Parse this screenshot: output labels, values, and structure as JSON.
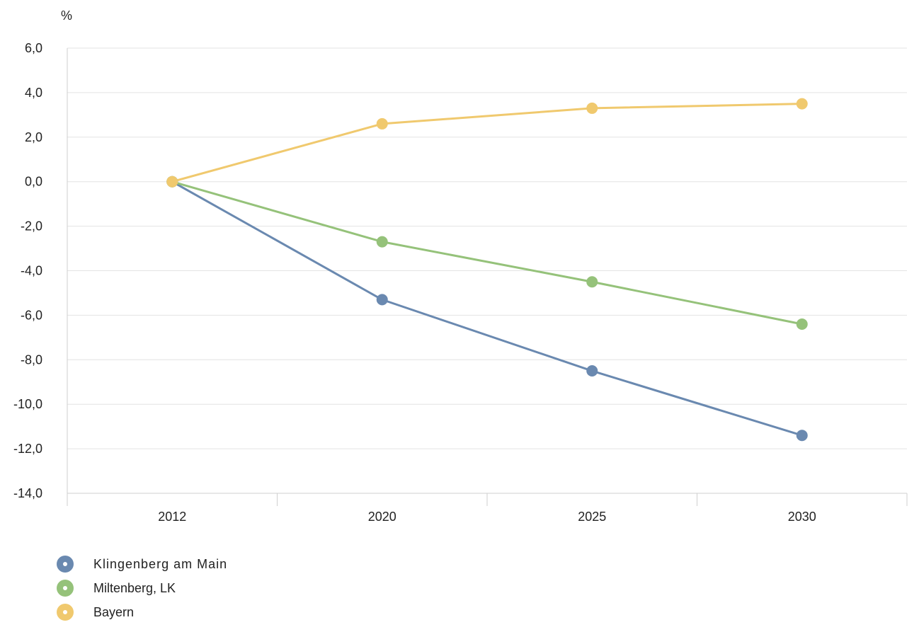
{
  "chart_data": {
    "type": "line",
    "ylabel": "%",
    "categories": [
      "2012",
      "2020",
      "2025",
      "2030"
    ],
    "ylim": [
      -14,
      6
    ],
    "yticks": [
      6,
      4,
      2,
      0,
      -2,
      -4,
      -6,
      -8,
      -10,
      -12,
      -14
    ],
    "ytick_labels": [
      "6,0",
      "4,0",
      "2,0",
      "0,0",
      "-2,0",
      "-4,0",
      "-6,0",
      "-8,0",
      "-10,0",
      "-12,0",
      "-14,0"
    ],
    "grid": true,
    "legend_position": "bottom-left",
    "series": [
      {
        "name": "Klingenberg am Main",
        "color": "#6a89b0",
        "values": [
          0.0,
          -5.3,
          -8.5,
          -11.4
        ]
      },
      {
        "name": "Miltenberg, LK",
        "color": "#95c27a",
        "values": [
          0.0,
          -2.7,
          -4.5,
          -6.4
        ]
      },
      {
        "name": "Bayern",
        "color": "#f0c96e",
        "values": [
          0.0,
          2.6,
          3.3,
          3.5
        ]
      }
    ]
  }
}
